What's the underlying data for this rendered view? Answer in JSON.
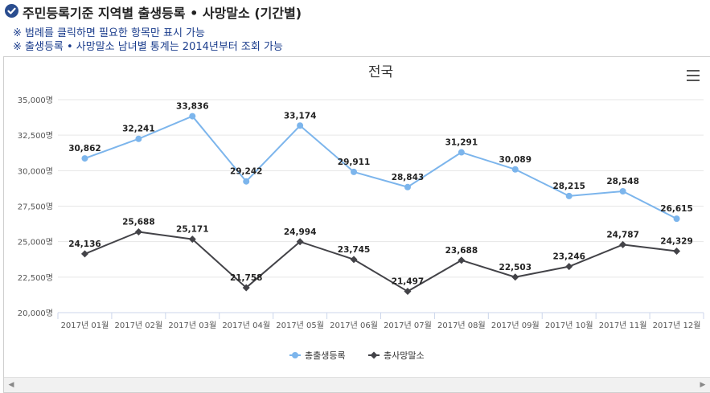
{
  "header": {
    "title": "주민등록기준 지역별 출생등록 • 사망말소 (기간별)",
    "note1": "※ 범례를 클릭하면 필요한 항목만 표시 가능",
    "note2": "※ 출생등록 • 사망말소 남녀별 통계는 2014년부터 조회 가능"
  },
  "colors": {
    "birth": "#7cb5ec",
    "death": "#434348",
    "accent": "#2a4d8f"
  },
  "chart_data": {
    "type": "line",
    "title": "전국",
    "categories": [
      "2017년 01월",
      "2017년 02월",
      "2017년 03월",
      "2017년 04월",
      "2017년 05월",
      "2017년 06월",
      "2017년 07월",
      "2017년 08월",
      "2017년 09월",
      "2017년 10월",
      "2017년 11월",
      "2017년 12월"
    ],
    "series": [
      {
        "name": "총출생등록",
        "marker": "circle",
        "values": [
          30862,
          32241,
          33836,
          29242,
          33174,
          29911,
          28843,
          31291,
          30089,
          28215,
          28548,
          26615
        ]
      },
      {
        "name": "총사망말소",
        "marker": "diamond",
        "values": [
          24136,
          25688,
          25171,
          21758,
          24994,
          23745,
          21497,
          23688,
          22503,
          23246,
          24787,
          24329
        ]
      }
    ],
    "ylim": [
      20000,
      35000
    ],
    "yticks": [
      20000,
      22500,
      25000,
      27500,
      30000,
      32500,
      35000
    ],
    "ytick_labels": [
      "20,000명",
      "22,500명",
      "25,000명",
      "27,500명",
      "30,000명",
      "32,500명",
      "35,000명"
    ],
    "grid": true,
    "legend": "bottom-center"
  }
}
